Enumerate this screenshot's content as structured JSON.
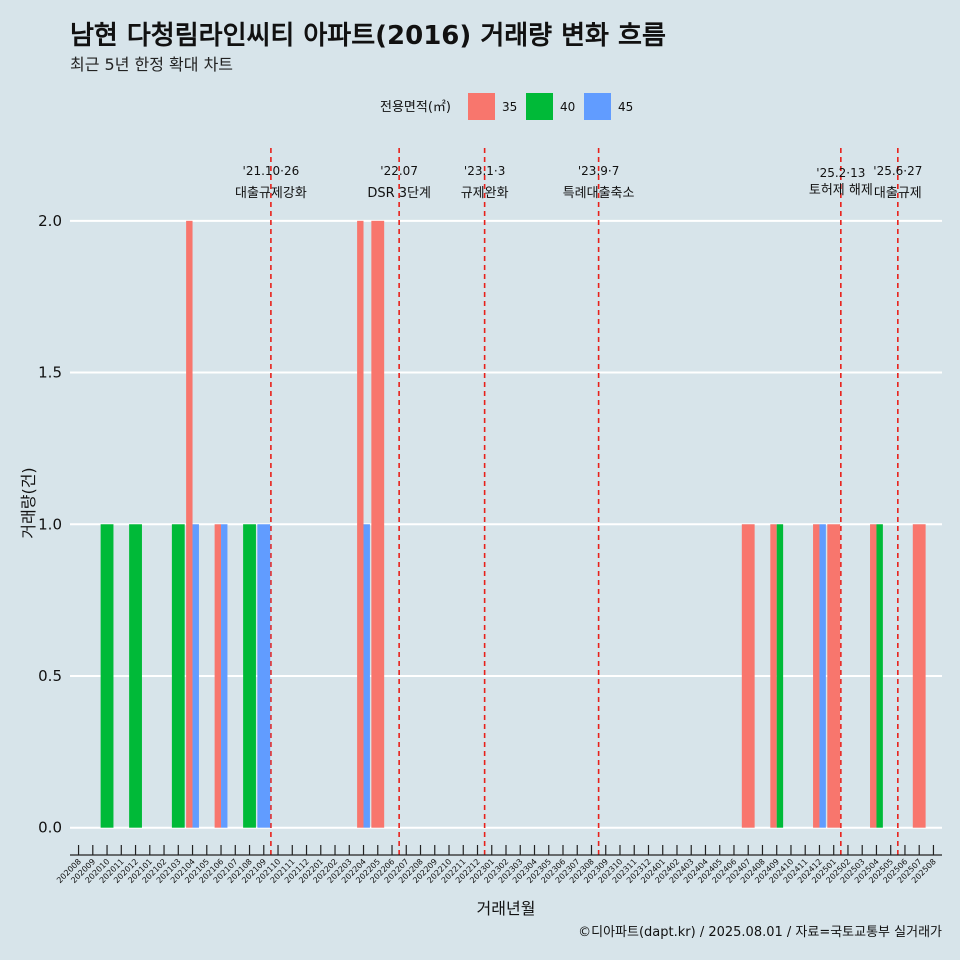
{
  "chart_data": {
    "type": "bar",
    "title": "남현 다청림라인씨티 아파트(2016) 거래량 변화 흐름",
    "subtitle": "최근 5년 한정 확대 차트",
    "xlabel": "거래년월",
    "ylabel": "거래량(건)",
    "caption": "©디아파트(dapt.kr) / 2025.08.01 / 자료=국토교통부 실거래가",
    "ylim": [
      -0.09,
      2.24
    ],
    "yticks": [
      "0.0",
      "0.5",
      "1.0",
      "1.5",
      "2.0"
    ],
    "legend": {
      "title": "전용면적(㎡)",
      "position": "top",
      "entries": [
        {
          "label": "35",
          "color": "#f8766d"
        },
        {
          "label": "40",
          "color": "#00ba38"
        },
        {
          "label": "45",
          "color": "#619cff"
        }
      ]
    },
    "categories": [
      "202008",
      "202009",
      "202010",
      "202011",
      "202012",
      "202101",
      "202102",
      "202103",
      "202104",
      "202105",
      "202106",
      "202107",
      "202108",
      "202109",
      "202110",
      "202111",
      "202112",
      "202201",
      "202202",
      "202203",
      "202204",
      "202205",
      "202206",
      "202207",
      "202208",
      "202209",
      "202210",
      "202211",
      "202212",
      "202301",
      "202302",
      "202303",
      "202304",
      "202305",
      "202306",
      "202307",
      "202308",
      "202309",
      "202310",
      "202311",
      "202312",
      "202401",
      "202402",
      "202403",
      "202404",
      "202405",
      "202406",
      "202407",
      "202408",
      "202409",
      "202410",
      "202411",
      "202412",
      "202501",
      "202502",
      "202503",
      "202504",
      "202505",
      "202506",
      "202507",
      "202508"
    ],
    "bars": [
      {
        "month": "202010",
        "area": "40",
        "value": 1
      },
      {
        "month": "202012",
        "area": "40",
        "value": 1
      },
      {
        "month": "202103",
        "area": "40",
        "value": 1
      },
      {
        "month": "202104",
        "area": "35",
        "value": 2
      },
      {
        "month": "202104",
        "area": "45",
        "value": 1
      },
      {
        "month": "202106",
        "area": "35",
        "value": 1
      },
      {
        "month": "202106",
        "area": "45",
        "value": 1
      },
      {
        "month": "202108",
        "area": "40",
        "value": 1
      },
      {
        "month": "202109",
        "area": "45",
        "value": 1
      },
      {
        "month": "202204",
        "area": "35",
        "value": 2
      },
      {
        "month": "202204",
        "area": "45",
        "value": 1
      },
      {
        "month": "202205",
        "area": "35",
        "value": 2
      },
      {
        "month": "202407",
        "area": "35",
        "value": 1
      },
      {
        "month": "202409",
        "area": "35",
        "value": 1
      },
      {
        "month": "202409",
        "area": "40",
        "value": 1
      },
      {
        "month": "202412",
        "area": "35",
        "value": 1
      },
      {
        "month": "202412",
        "area": "45",
        "value": 1
      },
      {
        "month": "202501",
        "area": "35",
        "value": 1
      },
      {
        "month": "202504",
        "area": "35",
        "value": 1
      },
      {
        "month": "202504",
        "area": "40",
        "value": 1
      },
      {
        "month": "202507",
        "area": "35",
        "value": 1
      }
    ],
    "events": [
      {
        "month": "202110",
        "date": "'21.10·26",
        "label": "대출규제강화"
      },
      {
        "month": "202207",
        "date": "'22.07",
        "label": "DSR 3단계"
      },
      {
        "month": "202301",
        "date": "'23.1·3",
        "label": "규제완화"
      },
      {
        "month": "202309",
        "date": "'23.9·7",
        "label": "특례대출축소"
      },
      {
        "month": "202502",
        "date": "'25.2·13",
        "label": "토허제 해제"
      },
      {
        "month": "202506",
        "date": "'25.6·27",
        "label": "대출규제"
      }
    ]
  }
}
